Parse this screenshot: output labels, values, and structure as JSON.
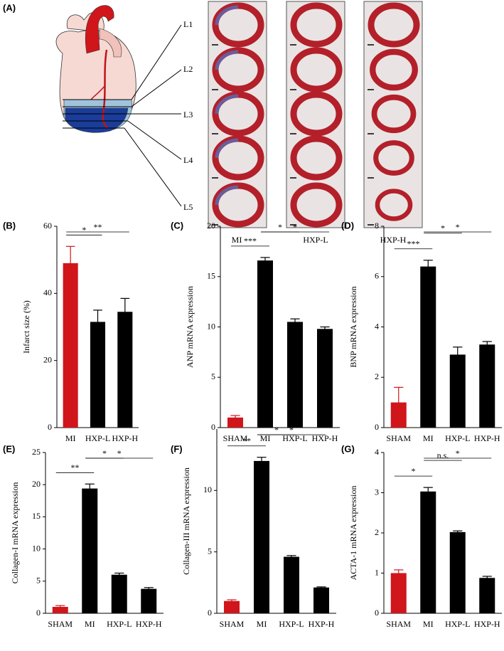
{
  "panel_a": {
    "label": "(A)",
    "levels": [
      "L1",
      "L2",
      "L3",
      "L4",
      "L5"
    ],
    "groups": [
      "MI",
      "HXP-L",
      "HXP-H"
    ]
  },
  "chart_data": [
    {
      "type": "bar",
      "panel": "(B)",
      "y_label": "Infarct size (%)",
      "categories": [
        "MI",
        "HXP-L",
        "HXP-H"
      ],
      "values": [
        49,
        31.5,
        34.5
      ],
      "errors": [
        5,
        3.5,
        4
      ],
      "colors": [
        "#d0161b",
        "#000000",
        "#000000"
      ],
      "ylim": [
        0,
        60
      ],
      "yticks": [
        0,
        20,
        40,
        60
      ],
      "significance": [
        {
          "label": "*",
          "between": [
            "MI",
            "HXP-L"
          ]
        },
        {
          "label": "**",
          "between": [
            "MI",
            "HXP-H"
          ]
        }
      ]
    },
    {
      "type": "bar",
      "panel": "(C)",
      "y_label": "ANP mRNA expression",
      "categories": [
        "SHAM",
        "MI",
        "HXP-L",
        "HXP-H"
      ],
      "values": [
        1,
        16.6,
        10.5,
        9.8
      ],
      "errors": [
        0.2,
        0.3,
        0.3,
        0.2
      ],
      "colors": [
        "#d0161b",
        "#000000",
        "#000000",
        "#000000"
      ],
      "ylim": [
        0,
        20
      ],
      "yticks": [
        0,
        5,
        10,
        15,
        20
      ],
      "significance": [
        {
          "label": "***",
          "between": [
            "SHAM",
            "MI"
          ]
        },
        {
          "label": "*",
          "between": [
            "MI",
            "HXP-L"
          ]
        },
        {
          "label": "*",
          "between": [
            "MI",
            "HXP-H"
          ]
        }
      ]
    },
    {
      "type": "bar",
      "panel": "(D)",
      "y_label": "BNP mRNA expression",
      "categories": [
        "SHAM",
        "MI",
        "HXP-L",
        "HXP-H"
      ],
      "values": [
        1,
        6.4,
        2.9,
        3.3
      ],
      "errors": [
        0.6,
        0.25,
        0.3,
        0.12
      ],
      "colors": [
        "#d0161b",
        "#000000",
        "#000000",
        "#000000"
      ],
      "ylim": [
        0,
        8
      ],
      "yticks": [
        0,
        2,
        4,
        6,
        8
      ],
      "significance": [
        {
          "label": "***",
          "between": [
            "SHAM",
            "MI"
          ]
        },
        {
          "label": "*",
          "between": [
            "MI",
            "HXP-L"
          ]
        },
        {
          "label": "*",
          "between": [
            "MI",
            "HXP-H"
          ]
        }
      ]
    },
    {
      "type": "bar",
      "panel": "(E)",
      "y_label": "Collagen-I mRNA expression",
      "categories": [
        "SHAM",
        "MI",
        "HXP-L",
        "HXP-H"
      ],
      "values": [
        1,
        19.4,
        6,
        3.8
      ],
      "errors": [
        0.2,
        0.7,
        0.25,
        0.2
      ],
      "colors": [
        "#d0161b",
        "#000000",
        "#000000",
        "#000000"
      ],
      "ylim": [
        0,
        25
      ],
      "yticks": [
        0,
        5,
        10,
        15,
        20,
        25
      ],
      "significance": [
        {
          "label": "**",
          "between": [
            "SHAM",
            "MI"
          ]
        },
        {
          "label": "*",
          "between": [
            "MI",
            "HXP-L"
          ]
        },
        {
          "label": "*",
          "between": [
            "MI",
            "HXP-H"
          ]
        }
      ]
    },
    {
      "type": "bar",
      "panel": "(F)",
      "y_label": "Collagen-III mRNA expression",
      "categories": [
        "SHAM",
        "MI",
        "HXP-L",
        "HXP-H"
      ],
      "values": [
        1,
        12.4,
        4.6,
        2.1
      ],
      "errors": [
        0.1,
        0.3,
        0.1,
        0.05
      ],
      "colors": [
        "#d0161b",
        "#000000",
        "#000000",
        "#000000"
      ],
      "ylim": [
        0,
        15
      ],
      "yticks": [
        0,
        5,
        10
      ],
      "significance": [
        {
          "label": "**",
          "between": [
            "SHAM",
            "MI"
          ]
        },
        {
          "label": "*",
          "between": [
            "MI",
            "HXP-L"
          ]
        },
        {
          "label": "*",
          "between": [
            "MI",
            "HXP-H"
          ]
        }
      ]
    },
    {
      "type": "bar",
      "panel": "(G)",
      "y_label": "ACTA-1 mRNA expression",
      "categories": [
        "SHAM",
        "MI",
        "HXP-L",
        "HXP-H"
      ],
      "values": [
        1,
        3.03,
        2.02,
        0.88
      ],
      "errors": [
        0.08,
        0.1,
        0.03,
        0.04
      ],
      "colors": [
        "#d0161b",
        "#000000",
        "#000000",
        "#000000"
      ],
      "ylim": [
        0,
        4
      ],
      "yticks": [
        0,
        1,
        2,
        3,
        4
      ],
      "significance": [
        {
          "label": "*",
          "between": [
            "SHAM",
            "MI"
          ]
        },
        {
          "label": "n.s.",
          "between": [
            "MI",
            "HXP-L"
          ]
        },
        {
          "label": "*",
          "between": [
            "MI",
            "HXP-H"
          ]
        }
      ]
    }
  ]
}
